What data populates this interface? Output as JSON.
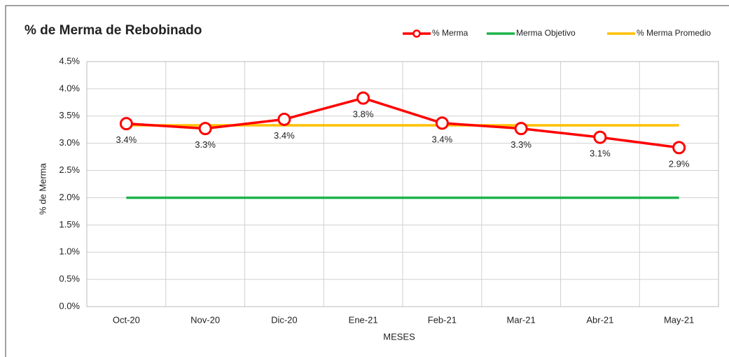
{
  "chart_data": {
    "type": "line",
    "title": "% de Merma de Rebobinado",
    "x_label": "MESES",
    "y_label": "% de Merma",
    "categories": [
      "Oct-20",
      "Nov-20",
      "Dic-20",
      "Ene-21",
      "Feb-21",
      "Mar-21",
      "Abr-21",
      "May-21"
    ],
    "series": [
      {
        "name": "% Merma",
        "color": "#ff0000",
        "markers": true,
        "values": [
          3.36,
          3.27,
          3.44,
          3.83,
          3.37,
          3.27,
          3.11,
          2.92
        ],
        "value_labels": [
          "3.4%",
          "3.3%",
          "3.4%",
          "3.8%",
          "3.4%",
          "3.3%",
          "3.1%",
          "2.9%"
        ]
      },
      {
        "name": "Merma Objetivo",
        "color": "#1db34a",
        "markers": false,
        "values": [
          2.0,
          2.0,
          2.0,
          2.0,
          2.0,
          2.0,
          2.0,
          2.0
        ]
      },
      {
        "name": "% Merma Promedio",
        "color": "#ffc000",
        "markers": false,
        "values": [
          3.33,
          3.33,
          3.33,
          3.33,
          3.33,
          3.33,
          3.33,
          3.33
        ]
      }
    ],
    "ylim": [
      0,
      4.5
    ],
    "yticks": [
      {
        "value": 0,
        "label": "0.0%"
      },
      {
        "value": 0.5,
        "label": "0.5%"
      },
      {
        "value": 1,
        "label": "1.0%"
      },
      {
        "value": 1.5,
        "label": "1.5%"
      },
      {
        "value": 2,
        "label": "2.0%"
      },
      {
        "value": 2.5,
        "label": "2.5%"
      },
      {
        "value": 3,
        "label": "3.0%"
      },
      {
        "value": 3.5,
        "label": "3.5%"
      },
      {
        "value": 4,
        "label": "4.0%"
      },
      {
        "value": 4.5,
        "label": "4.5%"
      }
    ],
    "grid": true,
    "legend": "top-right"
  }
}
